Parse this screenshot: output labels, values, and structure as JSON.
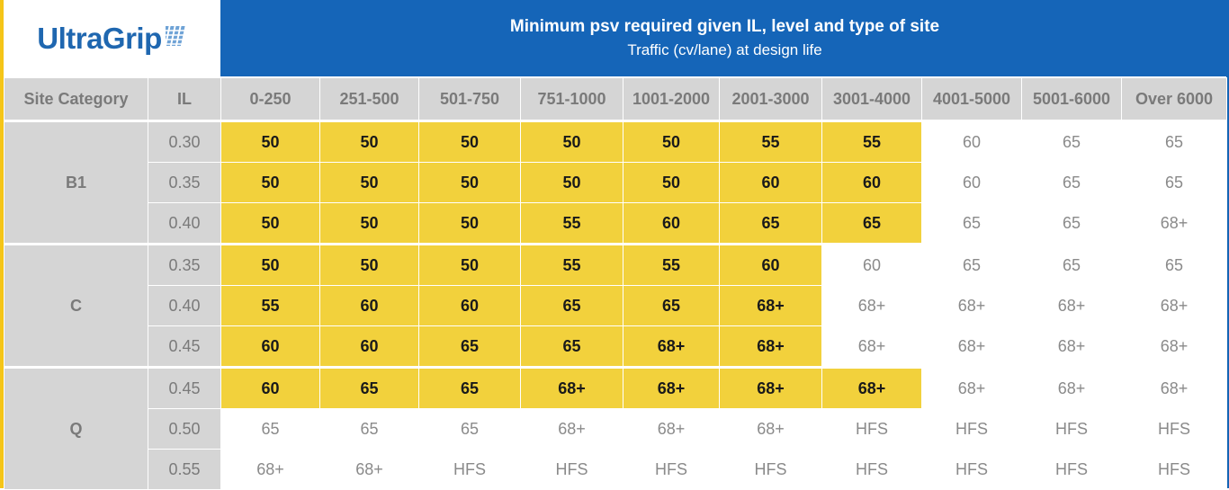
{
  "logo": {
    "text": "UltraGrip",
    "icon": "tyre-tread-icon",
    "color": "#1f67b0"
  },
  "title": {
    "main": "Minimum psv required given IL, level and type of site",
    "sub": "Traffic (cv/lane) at design life"
  },
  "colors": {
    "header_bg": "#1565b8",
    "highlight": "#f2d13c",
    "grey": "#d5d5d5"
  },
  "headers": {
    "site_category": "Site Category",
    "il": "IL",
    "traffic": [
      "0-250",
      "251-500",
      "501-750",
      "751-1000",
      "1001-2000",
      "2001-3000",
      "3001-4000",
      "4001-5000",
      "5001-6000",
      "Over 6000"
    ]
  },
  "groups": [
    {
      "category": "B1",
      "rows": [
        {
          "il": "0.30",
          "values": [
            "50",
            "50",
            "50",
            "50",
            "50",
            "55",
            "55",
            "60",
            "65",
            "65"
          ],
          "highlighted_count": 7
        },
        {
          "il": "0.35",
          "values": [
            "50",
            "50",
            "50",
            "50",
            "50",
            "60",
            "60",
            "60",
            "65",
            "65"
          ],
          "highlighted_count": 7
        },
        {
          "il": "0.40",
          "values": [
            "50",
            "50",
            "50",
            "55",
            "60",
            "65",
            "65",
            "65",
            "65",
            "68+"
          ],
          "highlighted_count": 7
        }
      ]
    },
    {
      "category": "C",
      "rows": [
        {
          "il": "0.35",
          "values": [
            "50",
            "50",
            "50",
            "55",
            "55",
            "60",
            "60",
            "65",
            "65",
            "65"
          ],
          "highlighted_count": 6
        },
        {
          "il": "0.40",
          "values": [
            "55",
            "60",
            "60",
            "65",
            "65",
            "68+",
            "68+",
            "68+",
            "68+",
            "68+"
          ],
          "highlighted_count": 6
        },
        {
          "il": "0.45",
          "values": [
            "60",
            "60",
            "65",
            "65",
            "68+",
            "68+",
            "68+",
            "68+",
            "68+",
            "68+"
          ],
          "highlighted_count": 6
        }
      ]
    },
    {
      "category": "Q",
      "rows": [
        {
          "il": "0.45",
          "values": [
            "60",
            "65",
            "65",
            "68+",
            "68+",
            "68+",
            "68+",
            "68+",
            "68+",
            "68+"
          ],
          "highlighted_count": 7
        },
        {
          "il": "0.50",
          "values": [
            "65",
            "65",
            "65",
            "68+",
            "68+",
            "68+",
            "HFS",
            "HFS",
            "HFS",
            "HFS"
          ],
          "highlighted_count": 0
        },
        {
          "il": "0.55",
          "values": [
            "68+",
            "68+",
            "HFS",
            "HFS",
            "HFS",
            "HFS",
            "HFS",
            "HFS",
            "HFS",
            "HFS"
          ],
          "highlighted_count": 0
        }
      ]
    }
  ]
}
